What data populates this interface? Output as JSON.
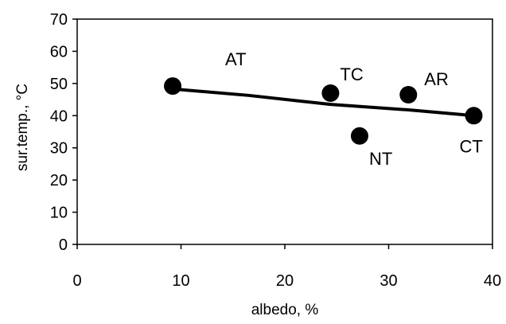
{
  "chart_data": {
    "type": "scatter",
    "title": "",
    "xlabel": "albedo, %",
    "ylabel": "sur.temp., °C",
    "xlim": [
      0,
      40
    ],
    "ylim": [
      0,
      70
    ],
    "xticks": [
      0,
      10,
      20,
      30,
      40
    ],
    "yticks": [
      0,
      10,
      20,
      30,
      40,
      50,
      60,
      70
    ],
    "grid": false,
    "legend": "none",
    "points": [
      {
        "label": "AT",
        "x": 9.2,
        "y": 49.2
      },
      {
        "label": "TC",
        "x": 24.4,
        "y": 47.0
      },
      {
        "label": "NT",
        "x": 27.2,
        "y": 33.7
      },
      {
        "label": "AR",
        "x": 31.9,
        "y": 46.5
      },
      {
        "label": "CT",
        "x": 38.2,
        "y": 40.0
      }
    ],
    "fit_line": {
      "x": [
        9.2,
        16.5,
        24.4,
        31.9,
        38.2
      ],
      "y": [
        48.3,
        46.3,
        43.5,
        41.8,
        40.0
      ]
    },
    "colors": {
      "marker": "#000000",
      "line": "#000000",
      "axis": "#000000"
    }
  }
}
